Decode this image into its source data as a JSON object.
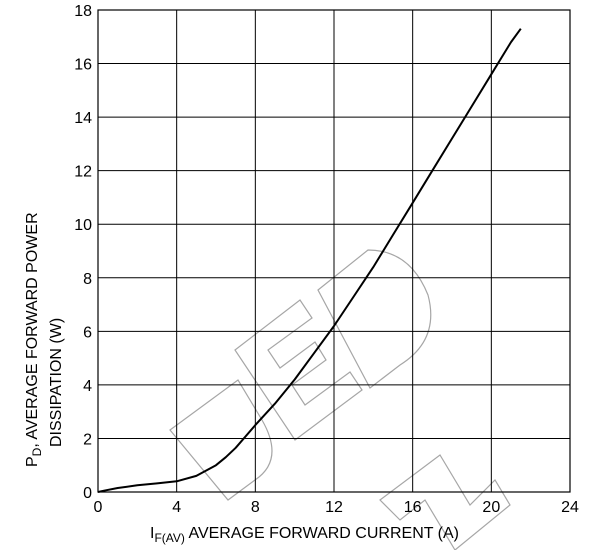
{
  "chart_data": {
    "type": "line",
    "xlabel_main": "I",
    "xlabel_sub": "F(AV)",
    "xlabel_rest": " AVERAGE FORWARD CURRENT (A)",
    "ylabel_line1_main": "P",
    "ylabel_line1_sub": "D",
    "ylabel_line1_rest": ", AVERAGE FORWARD POWER",
    "ylabel_line2": "DISSIPATION (W)",
    "xlim": [
      0,
      24
    ],
    "ylim": [
      0,
      18
    ],
    "x_ticks": [
      "0",
      "4",
      "8",
      "12",
      "16",
      "20",
      "24"
    ],
    "y_ticks": [
      "0",
      "2",
      "4",
      "6",
      "8",
      "10",
      "12",
      "14",
      "16",
      "18"
    ],
    "grid": true,
    "series": [
      {
        "x": [
          0,
          0.3,
          1,
          2,
          3,
          4,
          5,
          6,
          6.5,
          7,
          8,
          9,
          10,
          11,
          12,
          13,
          14,
          15,
          16,
          17,
          18,
          19,
          20,
          21,
          21.5
        ],
        "y": [
          0,
          0.05,
          0.15,
          0.25,
          0.32,
          0.4,
          0.6,
          1.0,
          1.3,
          1.65,
          2.5,
          3.3,
          4.2,
          5.2,
          6.2,
          7.3,
          8.4,
          9.6,
          10.8,
          12.0,
          13.2,
          14.4,
          15.6,
          16.8,
          17.3
        ]
      }
    ],
    "watermark": "DEDN"
  }
}
